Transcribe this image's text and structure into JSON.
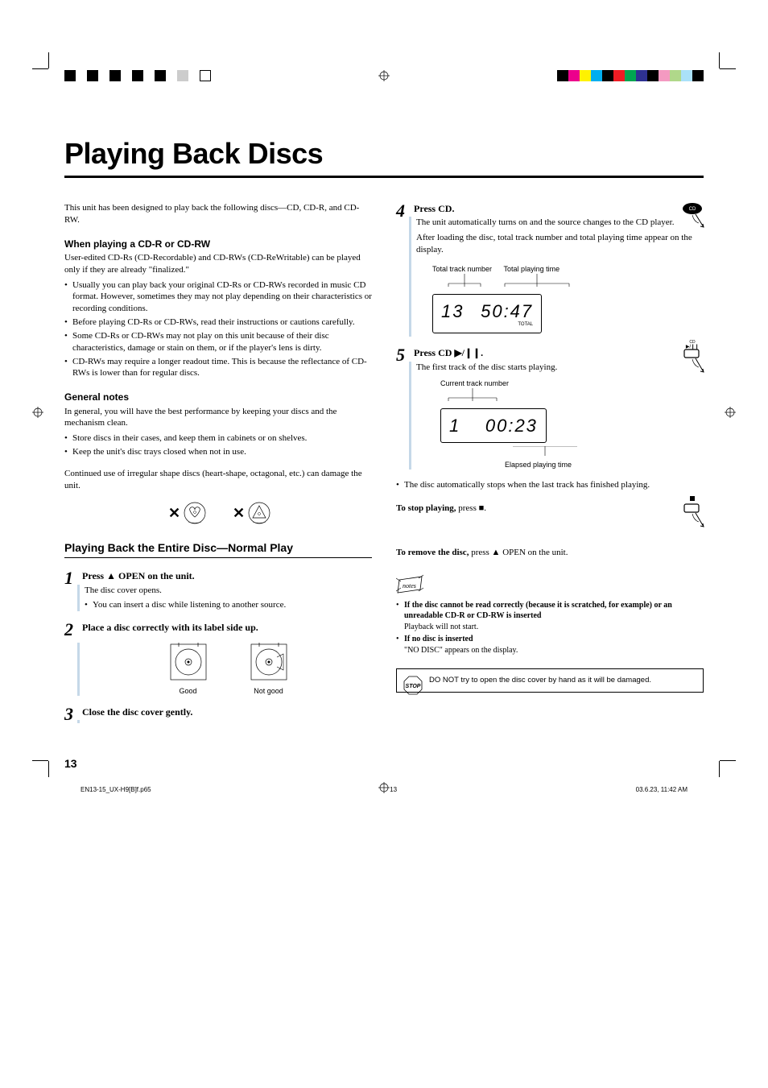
{
  "title": "Playing Back Discs",
  "intro": "This unit has been designed to play back the following discs—CD, CD-R, and CD-RW.",
  "cdr_head": "When playing a CD-R or CD-RW",
  "cdr_intro": "User-edited CD-Rs (CD-Recordable) and CD-RWs (CD-ReWritable) can be played only if they are already \"finalized.\"",
  "cdr_bullets": [
    "Usually you can play back your original CD-Rs or CD-RWs recorded in music CD format. However, sometimes they may not play depending on their characteristics or recording conditions.",
    "Before playing CD-Rs or CD-RWs, read their instructions or cautions carefully.",
    "Some CD-Rs or CD-RWs may not play on this unit because of their disc characteristics, damage or stain on them, or if the player's lens is dirty.",
    "CD-RWs may require a longer readout time. This is because the reflectance of CD-RWs is lower than for regular discs."
  ],
  "gen_head": "General notes",
  "gen_intro": "In general, you will have the best performance by keeping your discs and the mechanism clean.",
  "gen_bullets": [
    "Store discs in their cases, and keep them in cabinets or on shelves.",
    "Keep the unit's disc trays closed when not in use."
  ],
  "irregular": "Continued use of irregular shape discs (heart-shape, octagonal, etc.) can damage the unit.",
  "section_head": "Playing Back the Entire Disc—Normal Play",
  "steps": {
    "s1_head": "Press ▲ OPEN on the unit.",
    "s1_a": "The disc cover opens.",
    "s1_b": "You can insert a disc while listening to another source.",
    "s2_head": "Place a disc correctly with its label side up.",
    "s2_good": "Good",
    "s2_bad": "Not good",
    "s3_head": "Close the disc cover gently.",
    "s4_head": "Press CD.",
    "s4_a": "The unit automatically turns on and the source changes to the CD player.",
    "s4_b": "After loading the disc, total track number and total playing time appear on the display.",
    "s4_lbl1": "Total track number",
    "s4_lbl2": "Total playing time",
    "s4_disp_tracks": "13",
    "s4_disp_time": "50:47",
    "s4_total": "TOTAL",
    "s5_head": "Press CD ▶/❙❙.",
    "s5_a": "The first track of the disc starts playing.",
    "s5_lbl1": "Current track number",
    "s5_disp_track": "1",
    "s5_disp_time": "00:23",
    "s5_lbl2": "Elapsed playing time",
    "s5_bullet": "The disc automatically stops when the last track has finished playing."
  },
  "stop_bold": "To stop playing,",
  "stop_rest": " press ■.",
  "remove_bold": "To remove the disc,",
  "remove_rest": " press ▲ OPEN on the unit.",
  "notes": [
    {
      "bold": "If the disc cannot be read correctly (because it is scratched, for example) or an unreadable CD-R or CD-RW is inserted",
      "rest": "Playback will not start."
    },
    {
      "bold": "If no disc is inserted",
      "rest": "\"NO DISC\" appears on the display."
    }
  ],
  "warning": "DO NOT try to open the disc cover by hand as it will be damaged.",
  "btn_cd": "CD",
  "btn_cd_play": "CD\n▶/❙❙",
  "btn_stop": "■",
  "page_num": "13",
  "footer_file": "EN13-15_UX-H9[B]f.p65",
  "footer_page": "13",
  "footer_date": "03.6.23, 11:42 AM",
  "colors": {
    "accent": "#c5d8e8",
    "color_bar_right": [
      "#000000",
      "#ec008c",
      "#fff200",
      "#00aeef",
      "#000000",
      "#ed1c24",
      "#00a651",
      "#2e3192",
      "#000000",
      "#f49ac1",
      "#b0d88a",
      "#aae1f9",
      "#000000"
    ]
  }
}
